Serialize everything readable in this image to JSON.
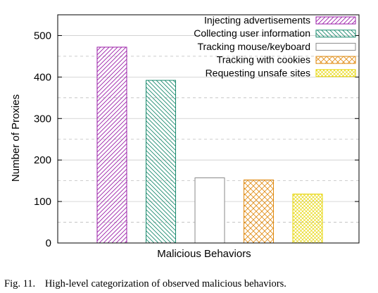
{
  "chart_data": {
    "type": "bar",
    "xlabel": "Malicious Behaviors",
    "ylabel": "Number of Proxies",
    "ylim": [
      0,
      550
    ],
    "yticks": [
      0,
      100,
      200,
      300,
      400,
      500
    ],
    "grid": "dashed horizontal",
    "legend_position": "top-right",
    "series": [
      {
        "name": "Injecting advertisements",
        "value": 472,
        "color": "#9b1fa8",
        "pattern": "hatch-diagonal-down"
      },
      {
        "name": "Collecting user information",
        "value": 392,
        "color": "#1a8a6e",
        "pattern": "hatch-diagonal-up"
      },
      {
        "name": "Tracking mouse/keyboard",
        "value": 157,
        "color": "#8a8a8a",
        "pattern": "none"
      },
      {
        "name": "Tracking with cookies",
        "value": 152,
        "color": "#e08a10",
        "pattern": "crosshatch"
      },
      {
        "name": "Requesting unsafe sites",
        "value": 118,
        "color": "#e6d400",
        "pattern": "crosshatch-fine"
      }
    ]
  },
  "caption": {
    "number": "Fig. 11.",
    "text": "High-level categorization of observed malicious behaviors."
  }
}
